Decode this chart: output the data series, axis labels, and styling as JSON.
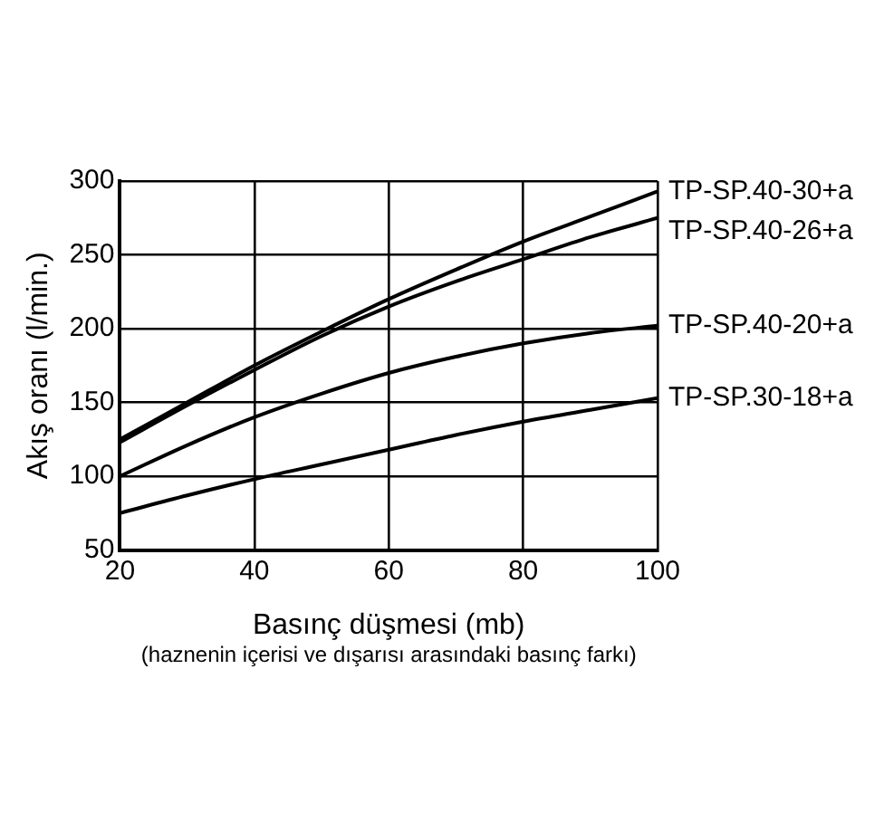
{
  "chart_data": {
    "type": "line",
    "xlabel": "Basınç düşmesi (mb)",
    "ylabel": "Akış oranı (l/min.)",
    "annotations": [
      "(haznenin içerisi ve dışarısı arasındaki basınç farkı)"
    ],
    "x": [
      20,
      30,
      40,
      50,
      60,
      70,
      80,
      90,
      100
    ],
    "series": [
      {
        "name": "TP-SP.40-30+a",
        "color": "#000000",
        "values": [
          125,
          150,
          175,
          198,
          220,
          240,
          259,
          276,
          293
        ]
      },
      {
        "name": "TP-SP.40-26+a",
        "color": "#000000",
        "values": [
          123,
          148,
          172,
          195,
          215,
          232,
          247,
          262,
          275
        ]
      },
      {
        "name": "TP-SP.40-20+a",
        "color": "#000000",
        "values": [
          100,
          121,
          140,
          156,
          170,
          181,
          190,
          197,
          202
        ]
      },
      {
        "name": "TP-SP.30-18+a",
        "color": "#000000",
        "values": [
          75,
          87,
          98,
          108,
          118,
          128,
          137,
          145,
          153
        ]
      }
    ],
    "xlim": [
      20,
      100
    ],
    "xticks": [
      20,
      40,
      60,
      80,
      100
    ],
    "ylim": [
      50,
      300
    ],
    "yticks": [
      50,
      100,
      150,
      200,
      250,
      300
    ],
    "grid": true,
    "legend": false,
    "marker": "none",
    "line_style": "solid"
  }
}
